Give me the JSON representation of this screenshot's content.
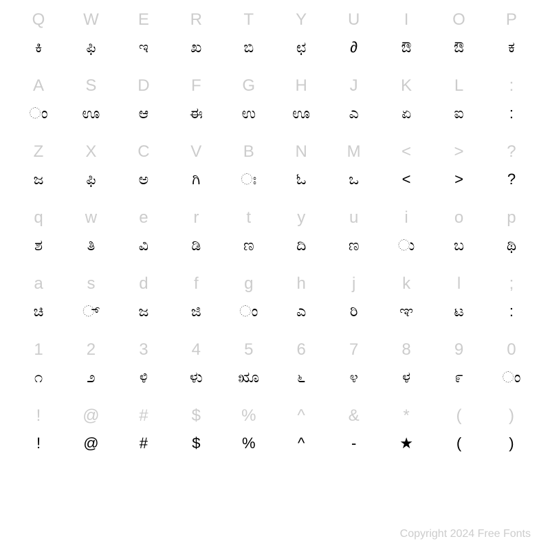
{
  "chart": {
    "type": "character-map",
    "columns": 10,
    "background_color": "#ffffff",
    "key_color": "#cccccc",
    "key_fontsize": 24,
    "glyph_color": "#000000",
    "glyph_fontsize": 22,
    "rows": [
      {
        "keys": [
          "Q",
          "W",
          "E",
          "R",
          "T",
          "Y",
          "U",
          "I",
          "O",
          "P"
        ],
        "glyphs": [
          "ಕಿ",
          "ಫಿ",
          "ಇ",
          "ಖ",
          "ಬಿ",
          "ಛ",
          "∂",
          "ಔ",
          "ಔ",
          "ಕ"
        ]
      },
      {
        "keys": [
          "A",
          "S",
          "D",
          "F",
          "G",
          "H",
          "J",
          "K",
          "L",
          ":"
        ],
        "glyphs": [
          "ಂ",
          "ಊ",
          "ಆ",
          "ಈ",
          "ಉ",
          "ಊ",
          "ಎ",
          "ಏ",
          "ಐ",
          ":"
        ]
      },
      {
        "keys": [
          "Z",
          "X",
          "C",
          "V",
          "B",
          "N",
          "M",
          "<",
          ">",
          "?"
        ],
        "glyphs": [
          "ಜ",
          "ಫಿ",
          "ಅ",
          "ಗಿ",
          "ಃ",
          "ಓ",
          "ಒ",
          "<",
          ">",
          "?"
        ]
      },
      {
        "keys": [
          "q",
          "w",
          "e",
          "r",
          "t",
          "y",
          "u",
          "i",
          "o",
          "p"
        ],
        "glyphs": [
          "ಶ",
          "ತಿ",
          "ವಿ",
          "ಡಿ",
          "ಣ",
          "ದಿ",
          "ಣ",
          "ು",
          "ಬ",
          "ಥಿ"
        ]
      },
      {
        "keys": [
          "a",
          "s",
          "d",
          "f",
          "g",
          "h",
          "j",
          "k",
          "l",
          ";"
        ],
        "glyphs": [
          "ಚಿ",
          "್",
          "ಜ",
          "ಜಿ",
          "ಂ",
          "ಎ",
          "ರಿ",
          "ಞ",
          "ಟ",
          ":"
        ]
      },
      {
        "keys": [
          "1",
          "2",
          "3",
          "4",
          "5",
          "6",
          "7",
          "8",
          "9",
          "0"
        ],
        "glyphs": [
          "೧",
          "೨",
          "ಳಿ",
          "ಳು",
          "ೠ",
          "೬",
          "೪",
          "ಳ",
          "೯",
          "ಂ"
        ]
      },
      {
        "keys": [
          "!",
          "@",
          "#",
          "$",
          "%",
          "^",
          "&",
          "*",
          "(",
          ")"
        ],
        "glyphs": [
          "!",
          "@",
          "#",
          "$",
          "%",
          "^",
          "-",
          "★",
          "(",
          ")"
        ]
      }
    ]
  },
  "copyright": "Copyright 2024 Free Fonts"
}
